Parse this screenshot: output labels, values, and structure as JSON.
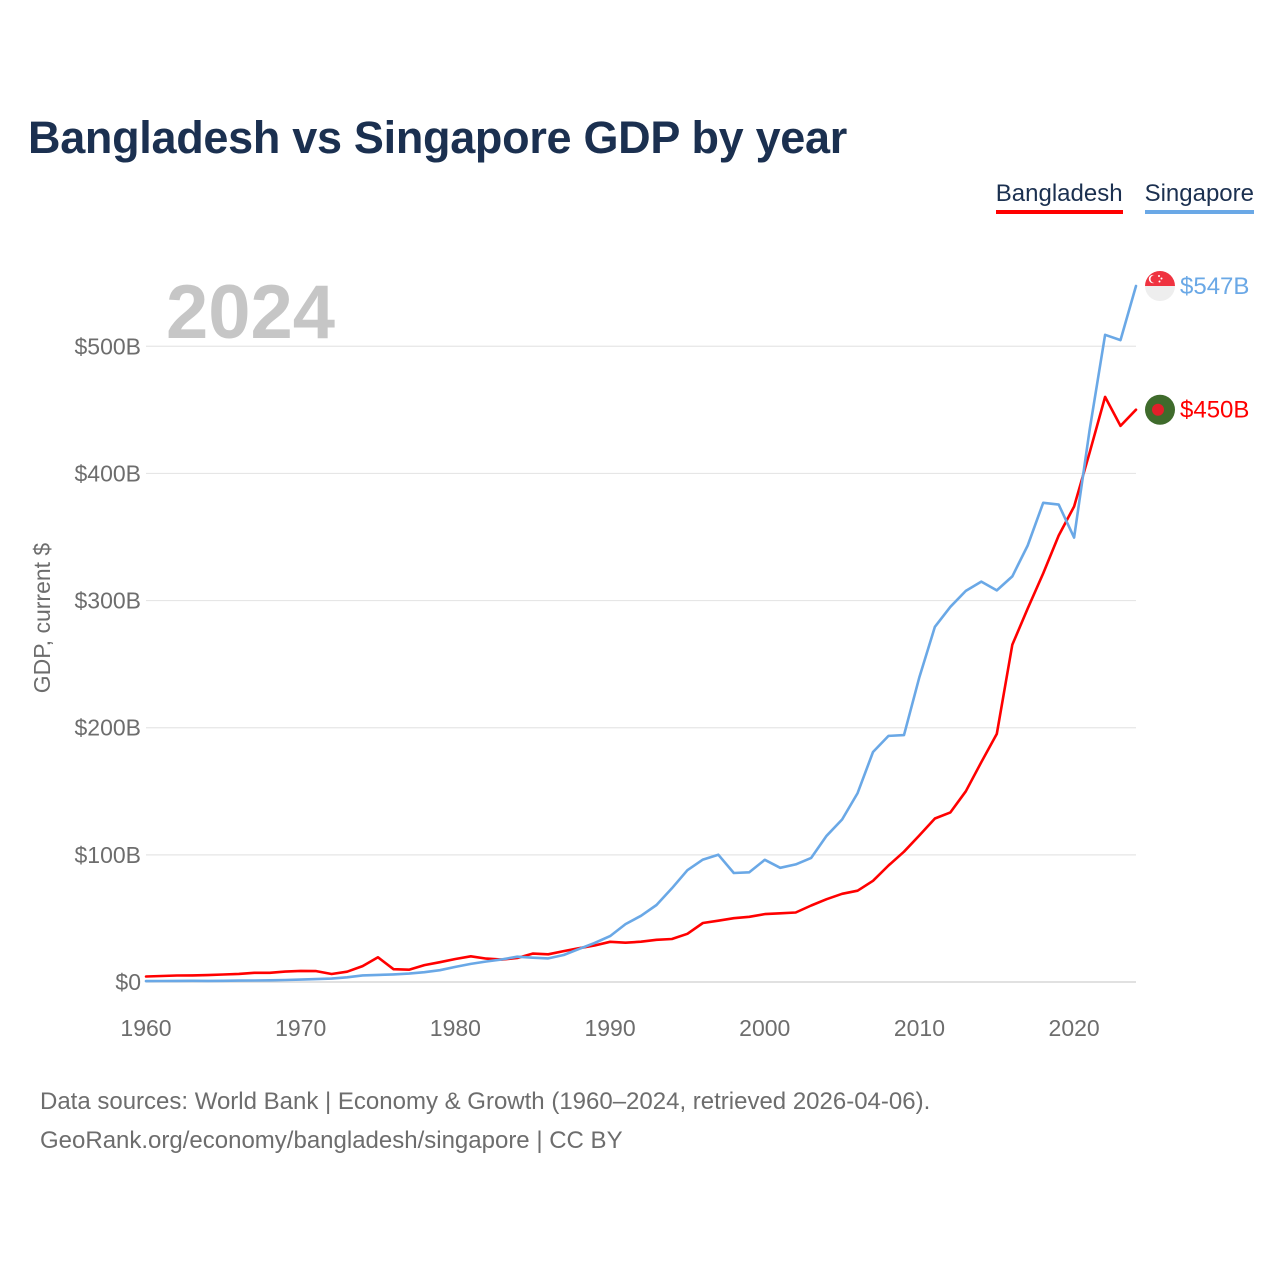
{
  "title": "Bangladesh vs Singapore GDP by year",
  "legend": [
    {
      "name": "Bangladesh",
      "color": "#ff0000"
    },
    {
      "name": "Singapore",
      "color": "#6aa8e6"
    }
  ],
  "footer": {
    "line1": "Data sources: World Bank | Economy & Growth (1960–2024, retrieved 2026-04-06).",
    "line2": "GeoRank.org/economy/bangladesh/singapore | CC BY"
  },
  "chart_data": {
    "type": "line",
    "title": "Bangladesh vs Singapore GDP by year",
    "year_label": "2024",
    "xlabel": "",
    "ylabel": "GDP, current $",
    "xlim": [
      1960,
      2024
    ],
    "ylim": [
      0,
      560
    ],
    "x_ticks": [
      "1960",
      "1970",
      "1980",
      "1990",
      "2000",
      "2010",
      "2020"
    ],
    "y_ticks": [
      {
        "value": 0,
        "label": "$0"
      },
      {
        "value": 100,
        "label": "$100B"
      },
      {
        "value": 200,
        "label": "$200B"
      },
      {
        "value": 300,
        "label": "$300B"
      },
      {
        "value": 400,
        "label": "$400B"
      },
      {
        "value": 500,
        "label": "$500B"
      }
    ],
    "units": "billions of current US$",
    "x": [
      1960,
      1961,
      1962,
      1963,
      1964,
      1965,
      1966,
      1967,
      1968,
      1969,
      1970,
      1971,
      1972,
      1973,
      1974,
      1975,
      1976,
      1977,
      1978,
      1979,
      1980,
      1981,
      1982,
      1983,
      1984,
      1985,
      1986,
      1987,
      1988,
      1989,
      1990,
      1991,
      1992,
      1993,
      1994,
      1995,
      1996,
      1997,
      1998,
      1999,
      2000,
      2001,
      2002,
      2003,
      2004,
      2005,
      2006,
      2007,
      2008,
      2009,
      2010,
      2011,
      2012,
      2013,
      2014,
      2015,
      2016,
      2017,
      2018,
      2019,
      2020,
      2021,
      2022,
      2023,
      2024
    ],
    "series": [
      {
        "name": "Bangladesh",
        "color": "#ff0000",
        "end_label": "$450B",
        "values": [
          4.3,
          4.7,
          5.1,
          5.2,
          5.4,
          5.9,
          6.4,
          7.2,
          7.2,
          8.2,
          8.7,
          8.6,
          6.3,
          8.1,
          12.5,
          19.4,
          10.1,
          9.7,
          13.3,
          15.6,
          18.1,
          20.2,
          18.4,
          17.6,
          18.9,
          22.3,
          21.8,
          24.3,
          26.6,
          28.7,
          31.6,
          30.9,
          31.7,
          33.2,
          33.8,
          37.9,
          46.4,
          48.2,
          50.2,
          51.3,
          53.4,
          54.0,
          54.7,
          60.2,
          65.1,
          69.4,
          71.8,
          79.6,
          91.6,
          102.5,
          115.3,
          128.6,
          133.4,
          149.99,
          172.9,
          195.1,
          265.2,
          293.8,
          321.4,
          351.2,
          374.0,
          416.3,
          460.2,
          437.4,
          450.1
        ]
      },
      {
        "name": "Singapore",
        "color": "#6aa8e6",
        "end_label": "$547B",
        "values": [
          0.7,
          0.76,
          0.83,
          0.92,
          0.89,
          0.97,
          1.08,
          1.2,
          1.35,
          1.57,
          1.9,
          2.26,
          2.7,
          3.7,
          5.2,
          5.6,
          6.0,
          6.6,
          7.7,
          9.3,
          11.9,
          14.2,
          16.1,
          17.8,
          19.9,
          19.1,
          18.6,
          21.2,
          26.0,
          30.7,
          36.1,
          45.5,
          52.1,
          60.6,
          73.7,
          87.9,
          96.3,
          100.1,
          85.7,
          86.3,
          96.1,
          89.8,
          92.5,
          97.6,
          115.0,
          127.8,
          148.6,
          180.9,
          193.6,
          194.2,
          239.8,
          279.4,
          295.1,
          307.6,
          314.9,
          308.0,
          319.0,
          343.3,
          376.9,
          375.5,
          349.5,
          434.1,
          509.0,
          504.9,
          547.4
        ]
      }
    ]
  }
}
